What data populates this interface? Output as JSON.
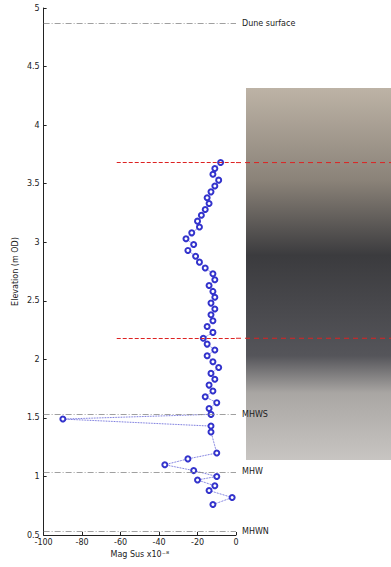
{
  "chart_data": {
    "type": "line",
    "x_label": "Mag Sus x10⁻⁸",
    "y_label": "Elevation (m OD)",
    "xlim": [
      -100,
      0
    ],
    "xticks": [
      -100,
      -80,
      -60,
      -40,
      -20,
      0
    ],
    "ylim": [
      0.5,
      5
    ],
    "yticks": [
      0.5,
      1,
      1.5,
      2,
      2.5,
      3,
      3.5,
      4,
      4.5,
      5
    ],
    "grid": false,
    "series": [
      {
        "name": "Mag Sus",
        "color": "#3333cc",
        "marker": "circle",
        "line_style": "dotted",
        "x": [
          -8,
          -11,
          -12,
          -9,
          -11,
          -13,
          -15,
          -14,
          -16,
          -18,
          -20,
          -19,
          -23,
          -26,
          -22,
          -25,
          -21,
          -19,
          -16,
          -12,
          -11,
          -14,
          -12,
          -11,
          -13,
          -11,
          -13,
          -12,
          -15,
          -12,
          -17,
          -15,
          -11,
          -15,
          -12,
          -9,
          -13,
          -11,
          -14,
          -12,
          -16,
          -10,
          -14,
          -13,
          -90,
          -13,
          -13,
          -10,
          -25,
          -37,
          -22,
          -10,
          -20,
          -11,
          -14,
          -2,
          -12
        ],
        "values": [
          3.68,
          3.63,
          3.58,
          3.53,
          3.48,
          3.43,
          3.38,
          3.33,
          3.28,
          3.23,
          3.18,
          3.13,
          3.08,
          3.03,
          2.98,
          2.93,
          2.88,
          2.83,
          2.78,
          2.73,
          2.68,
          2.63,
          2.58,
          2.53,
          2.48,
          2.43,
          2.38,
          2.33,
          2.28,
          2.23,
          2.18,
          2.13,
          2.08,
          2.03,
          1.98,
          1.93,
          1.88,
          1.83,
          1.78,
          1.73,
          1.68,
          1.63,
          1.58,
          1.53,
          1.49,
          1.43,
          1.38,
          1.2,
          1.15,
          1.1,
          1.05,
          1.0,
          0.97,
          0.92,
          0.88,
          0.82,
          0.76
        ]
      }
    ],
    "reference_lines": [
      {
        "y": 4.87,
        "label": "Dune surface"
      },
      {
        "y": 1.53,
        "label": "MHWS"
      },
      {
        "y": 1.04,
        "label": "MHW"
      },
      {
        "y": 0.53,
        "label": "MHWN"
      }
    ],
    "boundary_lines": {
      "y": [
        3.68,
        2.18
      ],
      "x_start": -62,
      "color": "#dd2222"
    }
  }
}
